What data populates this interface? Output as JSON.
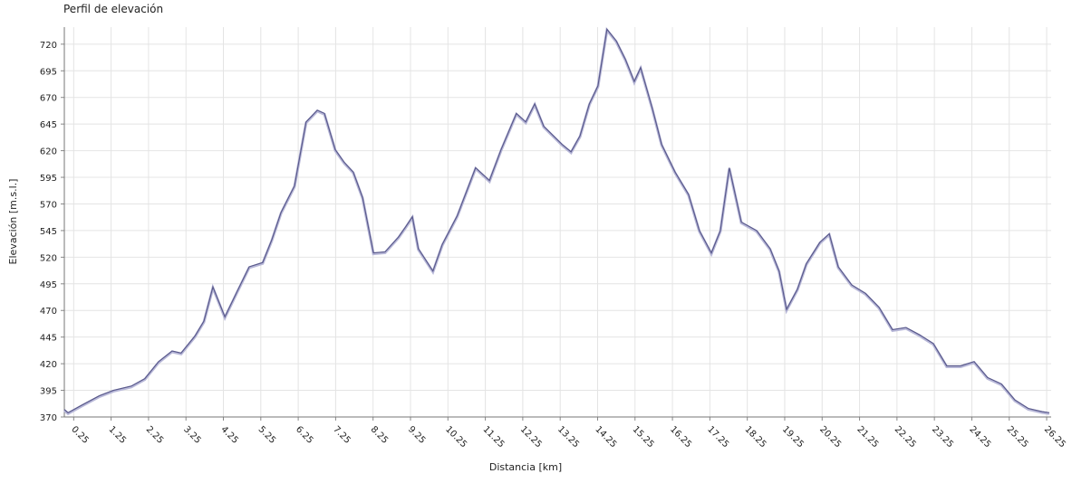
{
  "chart_data": {
    "type": "line",
    "title": "Perfil de elevación",
    "x_label": "Distancia [km]",
    "y_label": "Elevación [m.s.l.]",
    "x": [
      0,
      0.1,
      0.46,
      0.94,
      1.31,
      1.79,
      2.15,
      2.52,
      2.88,
      3.12,
      3.49,
      3.73,
      3.97,
      4.29,
      4.62,
      4.94,
      5.3,
      5.54,
      5.79,
      6.15,
      6.46,
      6.76,
      6.95,
      7.24,
      7.48,
      7.72,
      7.97,
      8.26,
      8.57,
      8.93,
      9.13,
      9.3,
      9.46,
      9.85,
      10.1,
      10.5,
      10.99,
      11.36,
      11.67,
      12.08,
      12.33,
      12.57,
      12.81,
      13.3,
      13.54,
      13.78,
      14.03,
      14.26,
      14.5,
      14.75,
      14.99,
      15.23,
      15.4,
      15.71,
      15.96,
      16.32,
      16.68,
      16.97,
      17.29,
      17.53,
      17.77,
      18.09,
      18.5,
      18.86,
      19.1,
      19.3,
      19.59,
      19.83,
      20.19,
      20.44,
      20.68,
      21.04,
      21.41,
      21.77,
      22.13,
      22.49,
      22.86,
      23.22,
      23.58,
      23.95,
      24.31,
      24.67,
      25.04,
      25.4,
      25.76,
      26.13,
      26.32
    ],
    "series": [
      {
        "name": "Elevación",
        "color": "#5a5a8c",
        "values": [
          377,
          374,
          381,
          390,
          395,
          399,
          406,
          422,
          432,
          430,
          446,
          460,
          492,
          464,
          488,
          511,
          515,
          536,
          562,
          587,
          647,
          658,
          655,
          621,
          609,
          600,
          576,
          524,
          525,
          539,
          549,
          558,
          528,
          507,
          532,
          559,
          604,
          592,
          621,
          655,
          647,
          664,
          643,
          626,
          619,
          634,
          664,
          681,
          734,
          723,
          706,
          685,
          698,
          660,
          626,
          600,
          579,
          545,
          524,
          545,
          604,
          553,
          545,
          528,
          507,
          471,
          490,
          514,
          534,
          542,
          511,
          494,
          486,
          473,
          452,
          454,
          447,
          439,
          418,
          418,
          422,
          407,
          401,
          386,
          378,
          375,
          374
        ]
      }
    ],
    "xlim": [
      0,
      26.37
    ],
    "ylim": [
      370,
      736
    ],
    "xticks": [
      0.25,
      1.25,
      2.25,
      3.25,
      4.25,
      5.25,
      6.25,
      7.25,
      8.25,
      9.25,
      10.25,
      11.25,
      12.25,
      13.25,
      14.25,
      15.25,
      16.25,
      17.25,
      18.25,
      19.25,
      20.25,
      21.25,
      22.25,
      23.25,
      24.25,
      25.25,
      26.25
    ],
    "yticks": [
      370,
      395,
      420,
      445,
      470,
      495,
      520,
      545,
      570,
      595,
      620,
      645,
      670,
      695,
      720
    ],
    "grid": true
  }
}
